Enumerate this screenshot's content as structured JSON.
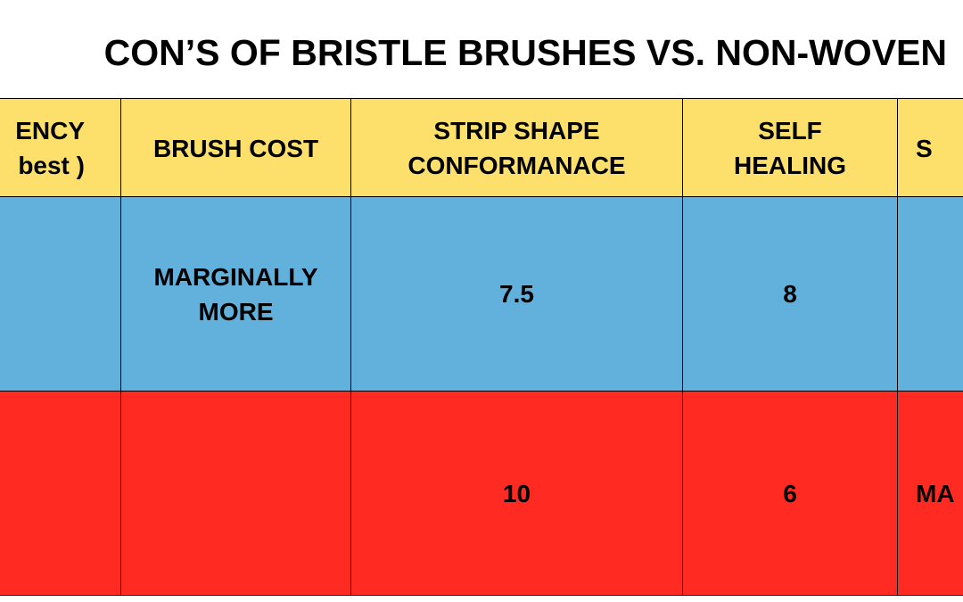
{
  "title": "CON’S OF BRISTLE BRUSHES VS. NON-WOVEN",
  "table": {
    "header": [
      [
        "ENCY",
        "best )"
      ],
      [
        "BRUSH COST"
      ],
      [
        "STRIP SHAPE",
        "CONFORMANACE"
      ],
      [
        "SELF",
        "HEALING"
      ],
      [
        "S"
      ]
    ],
    "rows": [
      [
        null,
        [
          "MARGINALLY",
          "MORE"
        ],
        [
          "7.5"
        ],
        [
          "8"
        ],
        null
      ],
      [
        null,
        null,
        [
          "10"
        ],
        [
          "6"
        ],
        [
          "MA"
        ]
      ]
    ]
  }
}
